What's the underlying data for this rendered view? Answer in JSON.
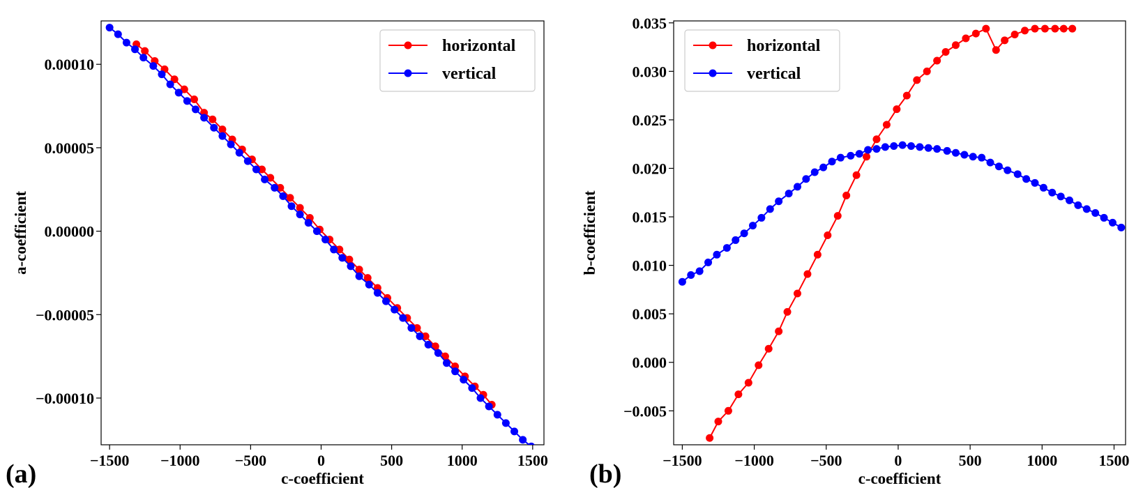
{
  "chart_data": [
    {
      "type": "line",
      "panel_label": "(a)",
      "xlabel": "c-coefficient",
      "ylabel": "a-coefficient",
      "xlim": [
        -1560,
        1580
      ],
      "ylim": [
        -0.000128,
        0.000126
      ],
      "xticks": [
        -1500,
        -1000,
        -500,
        0,
        500,
        1000,
        1500
      ],
      "xtick_labels": [
        "−1500",
        "−1000",
        "−500",
        "0",
        "500",
        "1000",
        "1500"
      ],
      "yticks": [
        0.0001,
        5e-05,
        0.0,
        -5e-05,
        -0.0001
      ],
      "ytick_labels": [
        "0.00010",
        "0.00005",
        "0.00000",
        "−0.00005",
        "−0.00010"
      ],
      "legend_position": "top-right",
      "grid": false,
      "series": [
        {
          "name": "horizontal",
          "color": "#ff0000",
          "x": [
            -1310,
            -1250,
            -1180,
            -1110,
            -1040,
            -970,
            -900,
            -830,
            -770,
            -700,
            -630,
            -560,
            -490,
            -420,
            -360,
            -290,
            -220,
            -150,
            -80,
            -10,
            60,
            130,
            200,
            270,
            330,
            400,
            470,
            540,
            610,
            680,
            740,
            810,
            880,
            950,
            1020,
            1090,
            1150,
            1210
          ],
          "y": [
            0.000112,
            0.000108,
            0.000102,
            9.7e-05,
            9.1e-05,
            8.5e-05,
            7.9e-05,
            7.1e-05,
            6.7e-05,
            6.1e-05,
            5.5e-05,
            4.9e-05,
            4.3e-05,
            3.7e-05,
            3.2e-05,
            2.6e-05,
            2e-05,
            1.4e-05,
            8e-06,
            1e-06,
            -5e-06,
            -1.1e-05,
            -1.7e-05,
            -2.3e-05,
            -2.8e-05,
            -3.4e-05,
            -4e-05,
            -4.6e-05,
            -5.2e-05,
            -5.8e-05,
            -6.3e-05,
            -6.9e-05,
            -7.5e-05,
            -8.1e-05,
            -8.7e-05,
            -9.3e-05,
            -9.8e-05,
            -0.000104
          ]
        },
        {
          "name": "vertical",
          "color": "#0000ff",
          "x": [
            -1500,
            -1440,
            -1380,
            -1320,
            -1260,
            -1190,
            -1130,
            -1070,
            -1010,
            -950,
            -890,
            -830,
            -760,
            -700,
            -640,
            -580,
            -520,
            -460,
            -400,
            -330,
            -270,
            -210,
            -150,
            -90,
            -30,
            30,
            90,
            150,
            210,
            270,
            340,
            400,
            460,
            520,
            580,
            640,
            700,
            760,
            830,
            890,
            950,
            1010,
            1070,
            1130,
            1190,
            1250,
            1310,
            1370,
            1430,
            1490,
            1550
          ],
          "y": [
            0.000122,
            0.000118,
            0.000113,
            0.000109,
            0.000104,
            9.9e-05,
            9.4e-05,
            8.8e-05,
            8.3e-05,
            7.8e-05,
            7.3e-05,
            6.8e-05,
            6.2e-05,
            5.7e-05,
            5.2e-05,
            4.7e-05,
            4.2e-05,
            3.7e-05,
            3.1e-05,
            2.6e-05,
            2.1e-05,
            1.5e-05,
            1e-05,
            5e-06,
            0.0,
            -5e-06,
            -1.1e-05,
            -1.6e-05,
            -2.1e-05,
            -2.7e-05,
            -3.2e-05,
            -3.7e-05,
            -4.2e-05,
            -4.7e-05,
            -5.2e-05,
            -5.8e-05,
            -6.3e-05,
            -6.8e-05,
            -7.3e-05,
            -7.9e-05,
            -8.4e-05,
            -8.9e-05,
            -9.4e-05,
            -0.0001,
            -0.000105,
            -0.00011,
            -0.000115,
            -0.00012,
            -0.000125,
            -0.000129,
            -0.000134
          ]
        }
      ]
    },
    {
      "type": "line",
      "panel_label": "(b)",
      "xlabel": "c-coefficient",
      "ylabel": "b-coefficient",
      "xlim": [
        -1560,
        1580
      ],
      "ylim": [
        -0.0085,
        0.0352
      ],
      "xticks": [
        -1500,
        -1000,
        -500,
        0,
        500,
        1000,
        1500
      ],
      "xtick_labels": [
        "−1500",
        "−1000",
        "−500",
        "0",
        "500",
        "1000",
        "1500"
      ],
      "yticks": [
        0.035,
        0.03,
        0.025,
        0.02,
        0.015,
        0.01,
        0.005,
        0.0,
        -0.005
      ],
      "ytick_labels": [
        "0.035",
        "0.030",
        "0.025",
        "0.020",
        "0.015",
        "0.010",
        "0.005",
        "0.000",
        "−0.005"
      ],
      "legend_position": "top-left",
      "grid": false,
      "series": [
        {
          "name": "horizontal",
          "color": "#ff0000",
          "x": [
            -1310,
            -1250,
            -1180,
            -1110,
            -1040,
            -970,
            -900,
            -830,
            -770,
            -700,
            -630,
            -560,
            -490,
            -420,
            -360,
            -290,
            -220,
            -150,
            -80,
            -10,
            60,
            130,
            200,
            270,
            330,
            400,
            470,
            540,
            610,
            680,
            740,
            810,
            880,
            950,
            1020,
            1090,
            1150,
            1210
          ],
          "y": [
            -0.0078,
            -0.0061,
            -0.005,
            -0.0033,
            -0.0021,
            -0.0003,
            0.0014,
            0.0032,
            0.0052,
            0.0071,
            0.0091,
            0.0111,
            0.0131,
            0.0151,
            0.0172,
            0.0193,
            0.0212,
            0.023,
            0.0245,
            0.0261,
            0.0275,
            0.0291,
            0.03,
            0.0311,
            0.032,
            0.0327,
            0.0334,
            0.0339,
            0.0344,
            0.0322,
            0.0332,
            0.0338,
            0.0342,
            0.0344,
            0.0344,
            0.0344,
            0.0344,
            0.0344
          ]
        },
        {
          "name": "vertical",
          "color": "#0000ff",
          "x": [
            -1500,
            -1440,
            -1380,
            -1320,
            -1260,
            -1190,
            -1130,
            -1070,
            -1010,
            -950,
            -890,
            -830,
            -760,
            -700,
            -640,
            -580,
            -520,
            -460,
            -400,
            -330,
            -270,
            -210,
            -150,
            -90,
            -30,
            30,
            90,
            150,
            210,
            270,
            340,
            400,
            460,
            520,
            580,
            640,
            700,
            760,
            830,
            890,
            950,
            1010,
            1070,
            1130,
            1190,
            1250,
            1310,
            1370,
            1430,
            1490,
            1550
          ],
          "y": [
            0.0083,
            0.009,
            0.0094,
            0.0103,
            0.0111,
            0.0118,
            0.0126,
            0.0133,
            0.0141,
            0.0149,
            0.0158,
            0.0166,
            0.0174,
            0.0181,
            0.0189,
            0.0196,
            0.0201,
            0.0207,
            0.0211,
            0.0213,
            0.0215,
            0.0219,
            0.022,
            0.0222,
            0.0223,
            0.0224,
            0.0223,
            0.0222,
            0.0221,
            0.022,
            0.0218,
            0.0216,
            0.0214,
            0.0212,
            0.0211,
            0.0206,
            0.0202,
            0.0198,
            0.0194,
            0.0189,
            0.0185,
            0.018,
            0.0175,
            0.0171,
            0.0167,
            0.0162,
            0.0158,
            0.0154,
            0.0149,
            0.0144,
            0.0139
          ]
        }
      ]
    }
  ]
}
